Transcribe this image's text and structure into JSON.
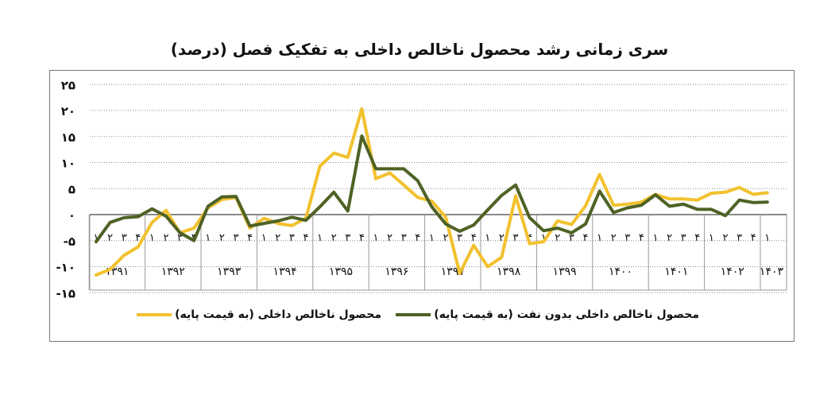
{
  "title": "سری زمانی رشد محصول ناخالص داخلی به تفکیک فصل (درصد)",
  "chart_data": {
    "type": "line",
    "title": "سری زمانی رشد محصول ناخالص داخلی به تفکیک فصل (درصد)",
    "ylim": [
      -15,
      25
    ],
    "yticks": [
      {
        "v": 25,
        "label": "۲۵"
      },
      {
        "v": 20,
        "label": "۲۰"
      },
      {
        "v": 15,
        "label": "۱۵"
      },
      {
        "v": 10,
        "label": "۱۰"
      },
      {
        "v": 5,
        "label": "۵"
      },
      {
        "v": 0,
        "label": "۰"
      },
      {
        "v": -5,
        "label": "-۵"
      },
      {
        "v": -10,
        "label": "-۱۰"
      },
      {
        "v": -15,
        "label": "-۱۵"
      }
    ],
    "years": [
      "۱۳۹۱",
      "۱۳۹۲",
      "۱۳۹۳",
      "۱۳۹۴",
      "۱۳۹۵",
      "۱۳۹۶",
      "۱۳۹۷",
      "۱۳۹۸",
      "۱۳۹۹",
      "۱۴۰۰",
      "۱۴۰۱",
      "۱۴۰۲",
      "۱۴۰۳"
    ],
    "quarter_labels": [
      "۱",
      "۲",
      "۳",
      "۴"
    ],
    "grid": true,
    "legend_position": "bottom",
    "series": [
      {
        "name": "محصول ناخالص داخلی (به قیمت پایه)",
        "color": "#f2c12e",
        "values": [
          -11.6,
          -10.5,
          -7.8,
          -6.2,
          -1.5,
          0.8,
          -3.5,
          -2.6,
          1.3,
          2.9,
          3.3,
          -2.6,
          -0.7,
          -1.7,
          -2.1,
          -0.7,
          9.3,
          11.8,
          11.0,
          20.3,
          6.9,
          8.0,
          5.7,
          3.3,
          2.6,
          -0.5,
          -11.3,
          -5.9,
          -10.0,
          -8.2,
          3.6,
          -5.6,
          -5.2,
          -1.2,
          -1.9,
          1.7,
          7.7,
          1.8,
          2.0,
          2.4,
          3.9,
          3.0,
          3.0,
          2.8,
          4.1,
          4.3,
          5.2,
          3.9,
          4.2
        ]
      },
      {
        "name": "محصول ناخالص داخلی بدون نفت (به قیمت پایه)",
        "color": "#4e6225",
        "values": [
          -5.2,
          -1.5,
          -0.6,
          -0.4,
          1.1,
          -0.3,
          -3.5,
          -5.0,
          1.6,
          3.4,
          3.5,
          -2.2,
          -1.7,
          -1.2,
          -0.5,
          -1.1,
          1.5,
          4.3,
          0.7,
          15.1,
          8.8,
          8.8,
          8.8,
          6.5,
          1.5,
          -1.8,
          -3.2,
          -2.0,
          0.9,
          3.7,
          5.7,
          -0.6,
          -3.1,
          -2.6,
          -3.5,
          -1.8,
          4.5,
          0.4,
          1.3,
          1.8,
          3.8,
          1.6,
          2.0,
          1.0,
          1.0,
          -0.2,
          2.8,
          2.3,
          2.4
        ]
      }
    ]
  }
}
